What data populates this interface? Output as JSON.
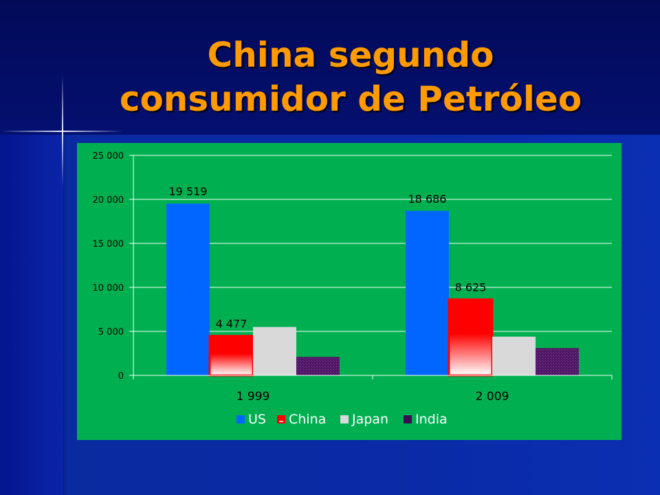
{
  "slide": {
    "title_line1": "China segundo",
    "title_line2": "consumidor de Petróleo"
  },
  "colors": {
    "title": "#ff9a00",
    "chart_background": "#00b050",
    "US": "#0066ff",
    "China": "#ff0000",
    "Japan": "#d9d9d9",
    "India": "#5a1e6e"
  },
  "chart_data": {
    "type": "bar",
    "title": "",
    "xlabel": "",
    "ylabel": "",
    "categories": [
      "1 999",
      "2 009"
    ],
    "ylim": [
      0,
      25000
    ],
    "yticks": [
      0,
      5000,
      10000,
      15000,
      20000,
      25000
    ],
    "ytick_labels": [
      "0",
      "5 000",
      "10 000",
      "15 000",
      "20 000",
      "25 000"
    ],
    "grid": true,
    "legend_position": "bottom",
    "series": [
      {
        "name": "US",
        "values": [
          19519,
          18686
        ],
        "data_labels": [
          "19 519",
          "18 686"
        ]
      },
      {
        "name": "China",
        "values": [
          4477,
          8625
        ],
        "data_labels": [
          "4 477",
          "8 625"
        ]
      },
      {
        "name": "Japan",
        "values": [
          5500,
          4400
        ],
        "data_labels": [
          "",
          ""
        ]
      },
      {
        "name": "India",
        "values": [
          2100,
          3100
        ],
        "data_labels": [
          "",
          ""
        ]
      }
    ]
  }
}
